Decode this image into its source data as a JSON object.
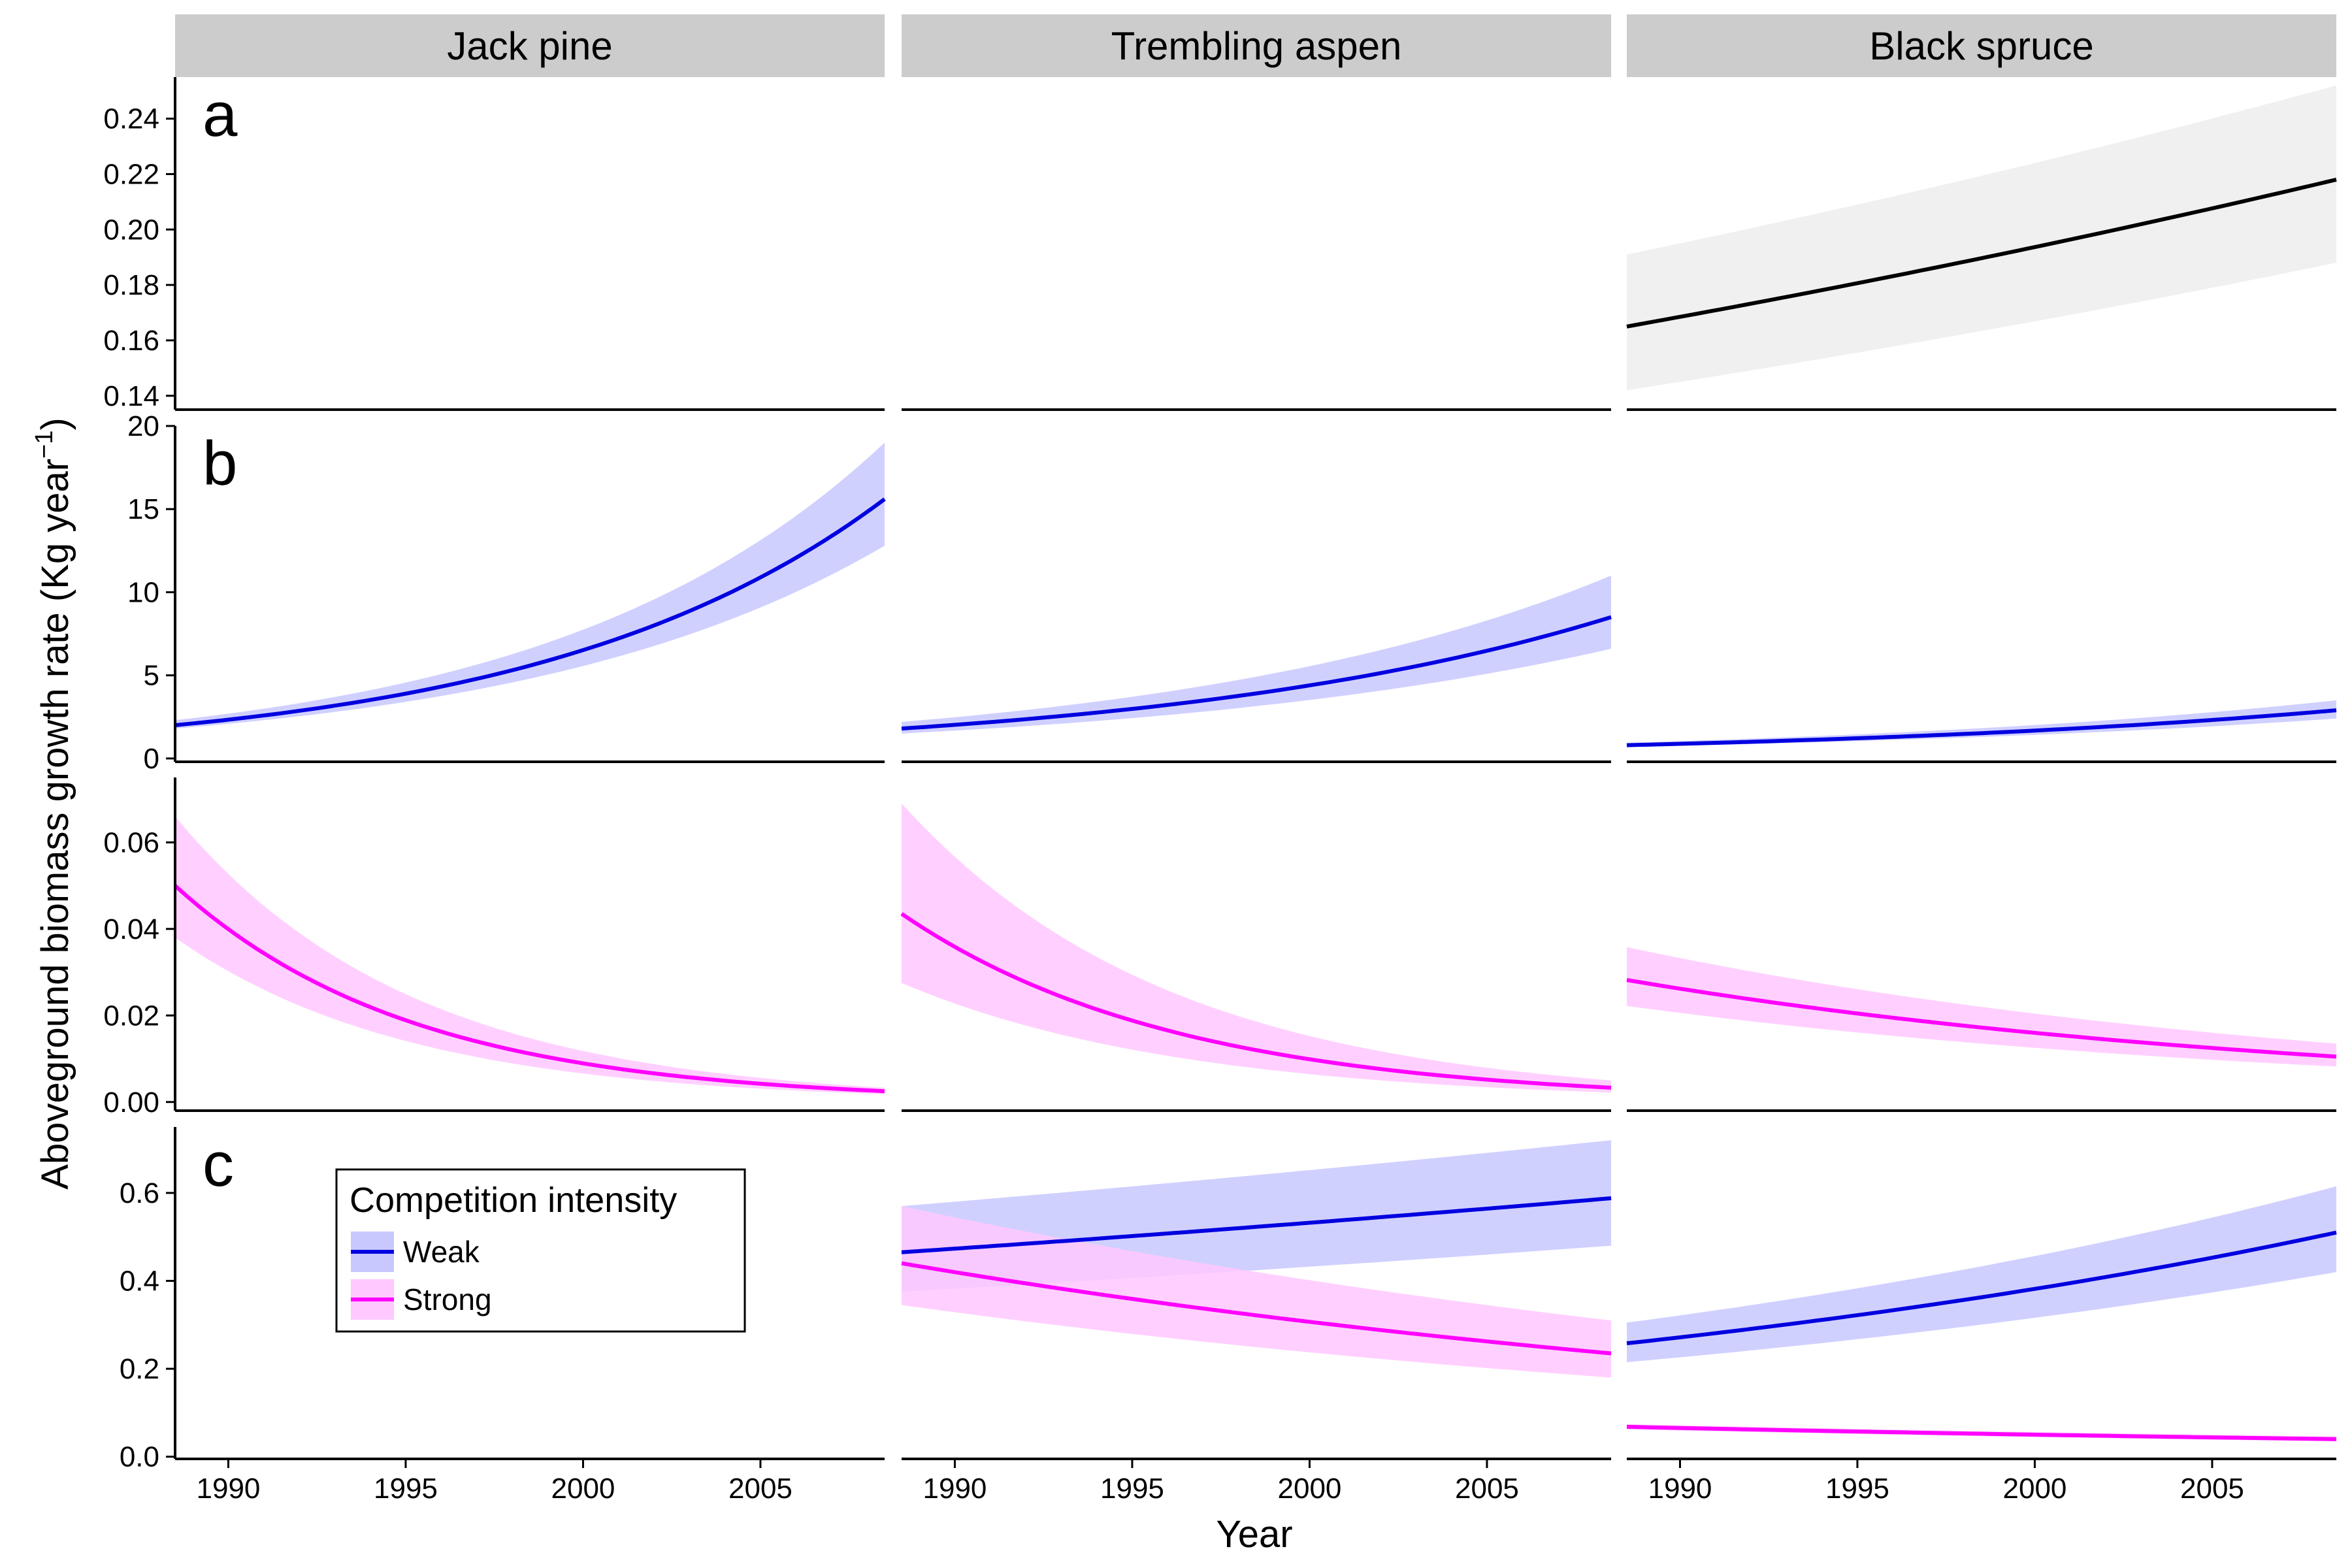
{
  "figure": {
    "facets": [
      "Jack pine",
      "Trembling aspen",
      "Black spruce"
    ],
    "panel_letters": [
      "a",
      "b",
      "",
      "c"
    ],
    "xlabel": "Year",
    "ylabel": "Aboveground biomass growth rate (Kg year",
    "ylabel_sup": "−1",
    "ylabel_close": ")",
    "colors": {
      "overall": "#000000",
      "overall_band": "#f0f0f0",
      "weak": "#0000e0",
      "weak_band": "#c8c8ff",
      "strong": "#ff00ff",
      "strong_band": "#ffc8ff",
      "strip": "#cccccc"
    }
  },
  "legend": {
    "title": "Competition intensity",
    "items": [
      {
        "label": "Weak",
        "color": "#0000e0"
      },
      {
        "label": "Strong",
        "color": "#ff00ff"
      }
    ]
  },
  "chart_data": {
    "type": "line",
    "x_range": [
      1988.5,
      2008.5
    ],
    "x_ticks": [
      1990,
      1995,
      2000,
      2005
    ],
    "rows": [
      {
        "letter": "a",
        "ylim": [
          0.135,
          0.255
        ],
        "y_ticks": [
          0.14,
          0.16,
          0.18,
          0.2,
          0.22,
          0.24
        ],
        "y_tick_labels": [
          "0.14",
          "0.16",
          "0.18",
          "0.20",
          "0.22",
          "0.24"
        ],
        "panels": [
          {
            "facet": "Jack pine",
            "series": []
          },
          {
            "facet": "Trembling aspen",
            "series": []
          },
          {
            "facet": "Black spruce",
            "series": [
              {
                "group": "overall",
                "start": 0.165,
                "end": 0.218,
                "start_lo": 0.142,
                "start_hi": 0.191,
                "end_lo": 0.188,
                "end_hi": 0.252
              }
            ]
          }
        ]
      },
      {
        "letter": "b",
        "ylim": [
          -0.2,
          20.0
        ],
        "y_ticks": [
          0,
          5,
          10,
          15,
          20
        ],
        "y_tick_labels": [
          "0",
          "5",
          "10",
          "15",
          "20"
        ],
        "panels": [
          {
            "facet": "Jack pine",
            "series": [
              {
                "group": "weak",
                "start": 2.0,
                "end": 15.6,
                "start_lo": 1.8,
                "start_hi": 2.3,
                "end_lo": 12.8,
                "end_hi": 19.0
              }
            ]
          },
          {
            "facet": "Trembling aspen",
            "series": [
              {
                "group": "weak",
                "start": 1.8,
                "end": 8.5,
                "start_lo": 1.5,
                "start_hi": 2.2,
                "end_lo": 6.6,
                "end_hi": 11.0
              }
            ]
          },
          {
            "facet": "Black spruce",
            "series": [
              {
                "group": "weak",
                "start": 0.8,
                "end": 2.9,
                "start_lo": 0.7,
                "start_hi": 0.95,
                "end_lo": 2.4,
                "end_hi": 3.5
              }
            ]
          }
        ]
      },
      {
        "letter": "",
        "ylim": [
          -0.002,
          0.075
        ],
        "y_ticks": [
          0.0,
          0.02,
          0.04,
          0.06
        ],
        "y_tick_labels": [
          "0.00",
          "0.02",
          "0.04",
          "0.06"
        ],
        "panels": [
          {
            "facet": "Jack pine",
            "series": [
              {
                "group": "strong",
                "start": 0.05,
                "end": 0.0025,
                "start_lo": 0.038,
                "start_hi": 0.066,
                "end_lo": 0.0018,
                "end_hi": 0.0033
              }
            ]
          },
          {
            "facet": "Trembling aspen",
            "series": [
              {
                "group": "strong",
                "start": 0.0435,
                "end": 0.0033,
                "start_lo": 0.0275,
                "start_hi": 0.069,
                "end_lo": 0.0022,
                "end_hi": 0.005
              }
            ]
          },
          {
            "facet": "Black spruce",
            "series": [
              {
                "group": "strong",
                "start": 0.0282,
                "end": 0.0105,
                "start_lo": 0.0222,
                "start_hi": 0.0358,
                "end_lo": 0.0082,
                "end_hi": 0.0135
              }
            ]
          }
        ]
      },
      {
        "letter": "c",
        "ylim": [
          -0.005,
          0.75
        ],
        "y_ticks": [
          0.0,
          0.2,
          0.4,
          0.6
        ],
        "y_tick_labels": [
          "0.0",
          "0.2",
          "0.4",
          "0.6"
        ],
        "panels": [
          {
            "facet": "Jack pine",
            "series": []
          },
          {
            "facet": "Trembling aspen",
            "series": [
              {
                "group": "weak",
                "start": 0.465,
                "end": 0.588,
                "start_lo": 0.375,
                "start_hi": 0.57,
                "end_lo": 0.48,
                "end_hi": 0.72
              },
              {
                "group": "strong",
                "start": 0.44,
                "end": 0.235,
                "start_lo": 0.345,
                "start_hi": 0.57,
                "end_lo": 0.18,
                "end_hi": 0.31
              }
            ]
          },
          {
            "facet": "Black spruce",
            "series": [
              {
                "group": "weak",
                "start": 0.258,
                "end": 0.51,
                "start_lo": 0.215,
                "start_hi": 0.305,
                "end_lo": 0.42,
                "end_hi": 0.615
              },
              {
                "group": "strong",
                "start": 0.068,
                "end": 0.04,
                "start_lo": 0.062,
                "start_hi": 0.074,
                "end_lo": 0.035,
                "end_hi": 0.046
              }
            ]
          }
        ]
      }
    ]
  }
}
